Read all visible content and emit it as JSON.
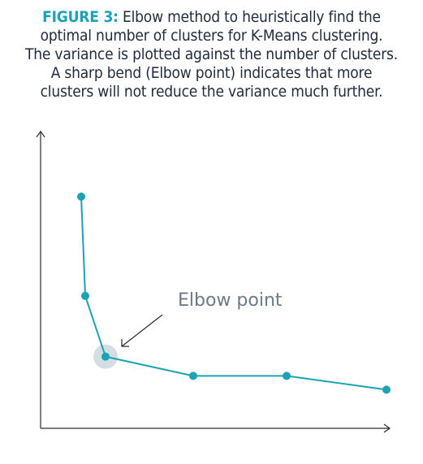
{
  "figure": {
    "label": "FIGURE 3:",
    "caption_lines": [
      " Elbow method to heuristically find the",
      "optimal number of clusters for K-Means clustering.",
      "The variance is plotted against the number of clusters.",
      "A sharp bend (Elbow point) indicates that more",
      "clusters will not reduce the variance much further."
    ]
  },
  "chart_data": {
    "type": "line",
    "title": "",
    "xlabel": "",
    "ylabel": "",
    "x": [
      1,
      2,
      3,
      4,
      5,
      6
    ],
    "series": [
      {
        "values": [
          0.84,
          0.48,
          0.26,
          0.19,
          0.19,
          0.14
        ]
      }
    ],
    "highlight_index": 2,
    "annotation": "Elbow point",
    "ticks_shown": false,
    "grid": false,
    "line_color": "#1aa3b3",
    "highlight_color": "#d4dde3",
    "axis_color": "#2b2b2b"
  }
}
